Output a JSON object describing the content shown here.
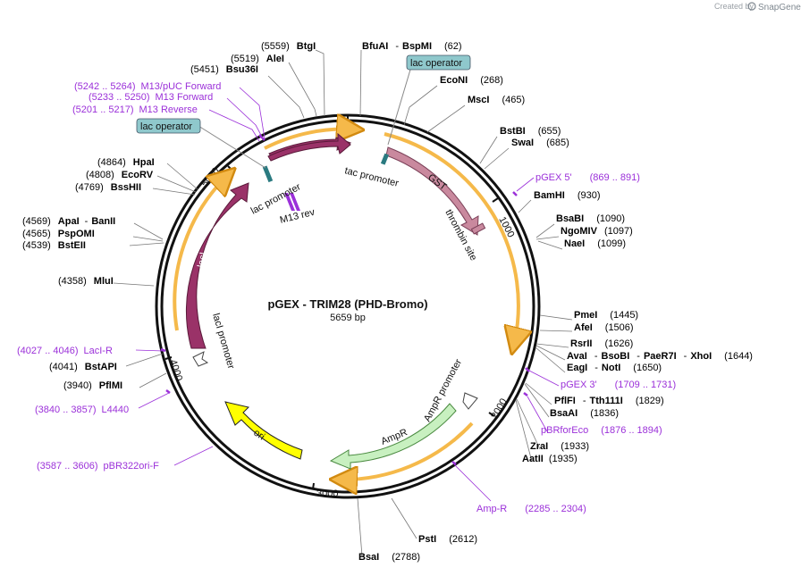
{
  "watermark": {
    "prefix": "Created by",
    "brand": "SnapGene"
  },
  "plasmid": {
    "name": "pGEX - TRIM28 (PHD-Bromo)",
    "size": "5659 bp"
  },
  "ticks": [
    "1000",
    "2000",
    "3000",
    "4000",
    "5000"
  ],
  "features": {
    "lacZa": "lacZα",
    "gst": "GST",
    "laci": "lacI",
    "ampr": "AmpR",
    "ori": "ori"
  },
  "feature_labels": {
    "lac_operator": "lac operator",
    "tac_promoter": "tac promoter",
    "lac_promoter": "lac promoter",
    "m13_rev": "M13 rev",
    "thrombin_site": "thrombin site",
    "laci_promoter": "lacI promoter",
    "ampr_promoter": "AmpR promoter"
  },
  "sites": {
    "btgi": {
      "pos": "(5559)",
      "name": "BtgI"
    },
    "alei": {
      "pos": "(5519)",
      "name": "AleI"
    },
    "bsu36i": {
      "pos": "(5451)",
      "name": "Bsu36I"
    },
    "bfuai": {
      "name": "BfuAI",
      "sep": "-",
      "name2": "BspMI",
      "pos": "(62)"
    },
    "econi": {
      "name": "EcoNI",
      "pos": "(268)"
    },
    "msci": {
      "name": "MscI",
      "pos": "(465)"
    },
    "bstbi": {
      "name": "BstBI",
      "pos": "(655)"
    },
    "swai": {
      "name": "SwaI",
      "pos": "(685)"
    },
    "bamhi": {
      "name": "BamHI",
      "pos": "(930)"
    },
    "bsabi": {
      "name": "BsaBI",
      "pos": "(1090)"
    },
    "ngomiv": {
      "name": "NgoMIV",
      "pos": "(1097)"
    },
    "naei": {
      "name": "NaeI",
      "pos": "(1099)"
    },
    "pmei": {
      "name": "PmeI",
      "pos": "(1445)"
    },
    "afei": {
      "name": "AfeI",
      "pos": "(1506)"
    },
    "rsrii": {
      "name": "RsrII",
      "pos": "(1626)"
    },
    "avai": {
      "name": "AvaI",
      "sep": "-",
      "name2": "BsoBI",
      "sep2": "-",
      "name3": "PaeR7I",
      "sep3": "-",
      "name4": "XhoI",
      "pos": "(1644)"
    },
    "eagi": {
      "name": "EagI",
      "sep": "-",
      "name2": "NotI",
      "pos": "(1650)"
    },
    "pflfi": {
      "name": "PflFI",
      "sep": "-",
      "name2": "Tth111I",
      "pos": "(1829)"
    },
    "bsaai": {
      "name": "BsaAI",
      "pos": "(1836)"
    },
    "zrai": {
      "name": "ZraI",
      "pos": "(1933)"
    },
    "aatii": {
      "name": "AatII",
      "pos": "(1935)"
    },
    "psti": {
      "name": "PstI",
      "pos": "(2612)"
    },
    "bsai": {
      "name": "BsaI",
      "pos": "(2788)"
    },
    "pfimi": {
      "pos": "(3940)",
      "name": "PflMI"
    },
    "bstapi": {
      "pos": "(4041)",
      "name": "BstAPI"
    },
    "mlui": {
      "pos": "(4358)",
      "name": "MluI"
    },
    "apai": {
      "pos": "(4569)",
      "name": "ApaI",
      "sep": "-",
      "name2": "BanII"
    },
    "pspomi": {
      "pos": "(4565)",
      "name": "PspOMI"
    },
    "bsteii": {
      "pos": "(4539)",
      "name": "BstEII"
    },
    "hpai": {
      "pos": "(4864)",
      "name": "HpaI"
    },
    "ecorv": {
      "pos": "(4808)",
      "name": "EcoRV"
    },
    "bsshii": {
      "pos": "(4769)",
      "name": "BssHII"
    }
  },
  "primers": {
    "m13puc": {
      "range": "(5242 .. 5264)",
      "name": "M13/pUC Forward"
    },
    "m13fwd": {
      "range": "(5233 .. 5250)",
      "name": "M13 Forward"
    },
    "m13rev": {
      "range": "(5201 .. 5217)",
      "name": "M13 Reverse"
    },
    "pgex5": {
      "name": "pGEX 5'",
      "range": "(869 .. 891)"
    },
    "pgex3": {
      "name": "pGEX 3'",
      "range": "(1709 .. 1731)"
    },
    "pbrforeco": {
      "name": "pBRforEco",
      "range": "(1876 .. 1894)"
    },
    "ampr_primer": {
      "name": "Amp-R",
      "range": "(2285 .. 2304)"
    },
    "pbr322ori": {
      "range": "(3587 .. 3606)",
      "name": "pBR322ori-F"
    },
    "l4440": {
      "range": "(3840 .. 3857)",
      "name": "L4440"
    },
    "laci_r": {
      "range": "(4027 .. 4046)",
      "name": "LacI-R"
    }
  },
  "colors": {
    "backbone": "#111111",
    "lacZa": "#9a3268",
    "gst": "#c9899e",
    "laci": "#9a3268",
    "ampr": "#c8f0c0",
    "ori": "#ffff00",
    "orf_outline": "#f5b94a",
    "primer": "#9b30d9",
    "operator_box": "#8fc8cc"
  }
}
